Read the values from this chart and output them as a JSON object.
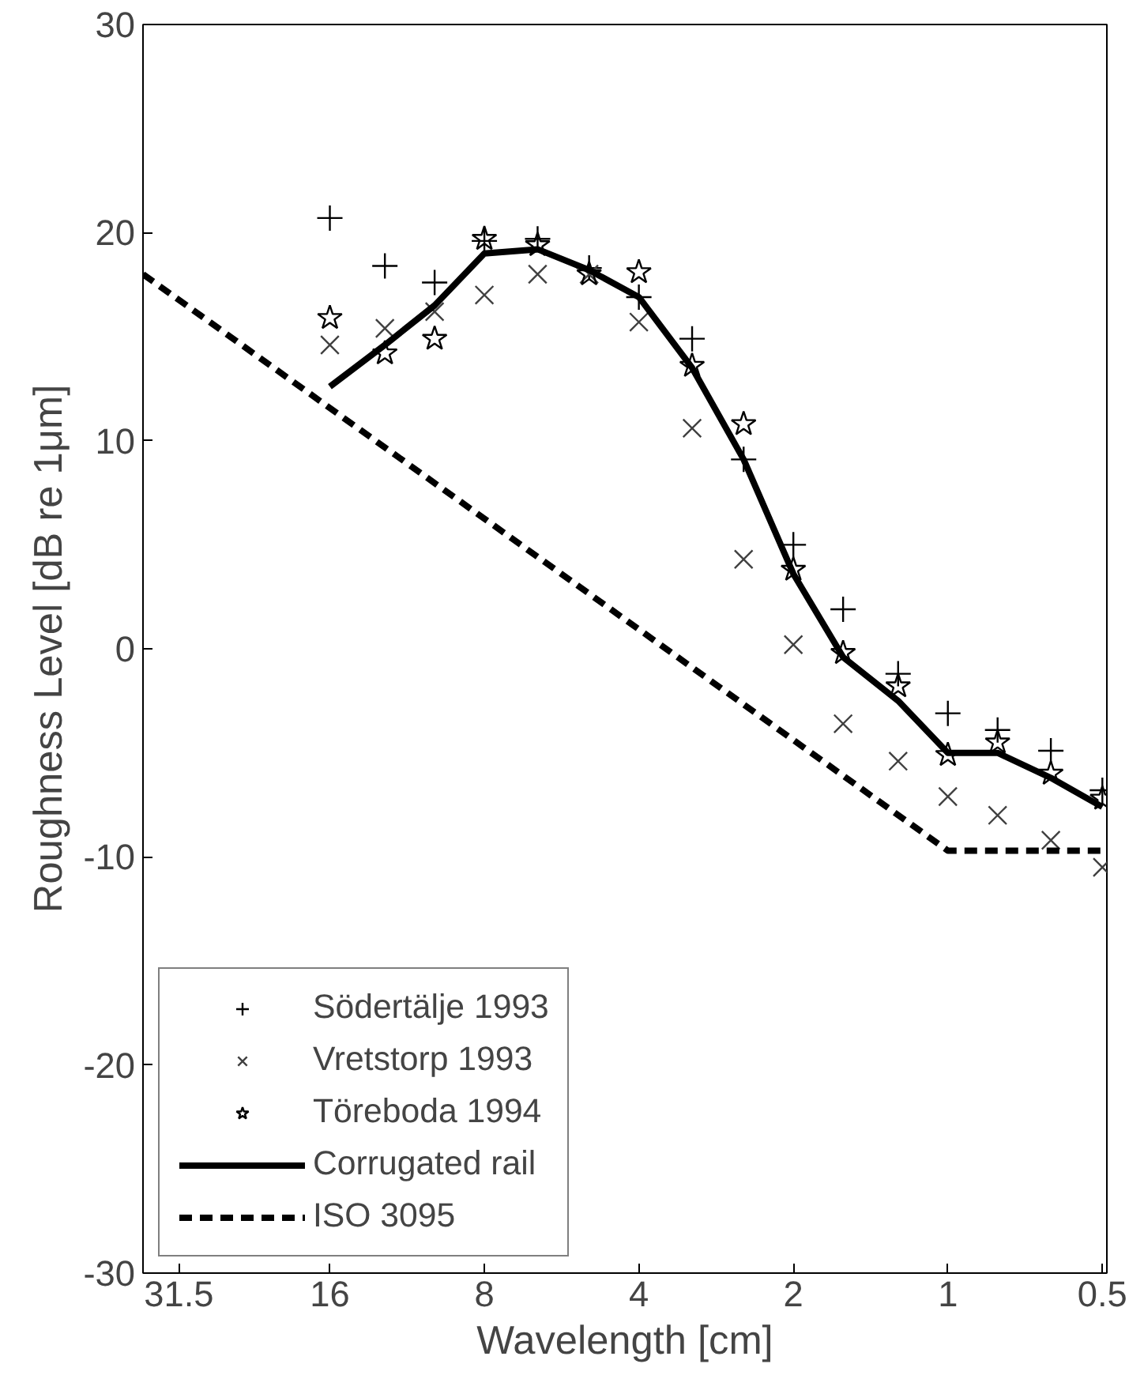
{
  "chart_data": {
    "type": "scatter",
    "xlabel": "Wavelength [cm]",
    "ylabel": "Roughness Level [dB re 1μm]",
    "log": "x",
    "xlim": [
      37,
      0.49
    ],
    "xticks": [
      31.5,
      16,
      8,
      4,
      2,
      1,
      0.5
    ],
    "ylim": [
      -30,
      30
    ],
    "yticks": [
      -30,
      -20,
      -10,
      0,
      10,
      20,
      30
    ],
    "grid": false,
    "legend": "bottom left",
    "x": [
      16,
      12.5,
      10,
      8,
      6.3,
      5,
      4,
      3.15,
      2.5,
      2,
      1.6,
      1.25,
      1,
      0.8,
      0.63,
      0.5
    ],
    "series": [
      {
        "name": "Södertälje 1993",
        "marker": "cross",
        "color": "#000000",
        "values": [
          20.7,
          18.4,
          17.6,
          19.6,
          19.7,
          18.3,
          16.9,
          14.9,
          9.1,
          5.0,
          1.9,
          -1.2,
          -3.1,
          -3.9,
          -4.9,
          -6.8
        ]
      },
      {
        "name": "Vretstorp 1993",
        "marker": "x",
        "color": "#404040",
        "values": [
          14.6,
          15.4,
          16.2,
          17.0,
          18.0,
          18.0,
          15.7,
          10.6,
          4.3,
          0.2,
          -3.6,
          -5.4,
          -7.1,
          -8.0,
          -9.2,
          -10.5
        ]
      },
      {
        "name": "Töreboda 1994",
        "marker": "star",
        "color": "#000000",
        "values": [
          15.9,
          14.2,
          14.9,
          19.7,
          19.4,
          18.0,
          18.1,
          13.6,
          10.8,
          3.8,
          -0.2,
          -1.8,
          -5.1,
          -4.5,
          -6.0,
          -7.2
        ]
      },
      {
        "name": "Corrugated rail",
        "type": "line",
        "line_style": "solid",
        "color": "#000000",
        "values": [
          12.6,
          14.6,
          16.5,
          19.0,
          19.2,
          18.2,
          16.9,
          13.5,
          9.1,
          3.6,
          -0.4,
          -2.5,
          -5.0,
          -5.0,
          -6.2,
          -7.6
        ]
      },
      {
        "name": "ISO 3095",
        "type": "line",
        "line_style": "dashed",
        "color": "#000000",
        "x": [
          37,
          1,
          0.5
        ],
        "values": [
          18.0,
          -9.7,
          -9.7
        ]
      }
    ]
  }
}
